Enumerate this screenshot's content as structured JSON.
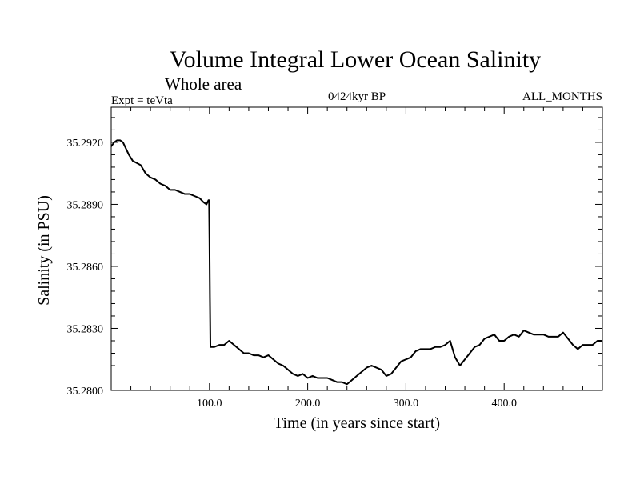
{
  "chart_data": {
    "type": "line",
    "title": "Volume Integral Lower Ocean Salinity",
    "subtitle": "Whole area",
    "header_left": "Expt = teVta",
    "header_center": "0424kyr BP",
    "header_right": "ALL_MONTHS",
    "xlabel": "Time (in years since start)",
    "ylabel": "Salinity (in PSU)",
    "xlim": [
      0,
      500
    ],
    "ylim": [
      35.28,
      35.2937
    ],
    "x_ticks": [
      {
        "value": 100,
        "label": "100.0"
      },
      {
        "value": 200,
        "label": "200.0"
      },
      {
        "value": 300,
        "label": "300.0"
      },
      {
        "value": 400,
        "label": "400.0"
      }
    ],
    "y_ticks": [
      {
        "value": 35.28,
        "label": "35.2800"
      },
      {
        "value": 35.283,
        "label": "35.2830"
      },
      {
        "value": 35.286,
        "label": "35.2860"
      },
      {
        "value": 35.289,
        "label": "35.2890"
      },
      {
        "value": 35.292,
        "label": "35.2920"
      }
    ],
    "grid": false,
    "series": [
      {
        "name": "",
        "color": "#000000",
        "x": [
          0,
          3,
          6,
          9,
          12,
          15,
          18,
          22,
          26,
          30,
          35,
          40,
          45,
          50,
          55,
          60,
          65,
          70,
          75,
          80,
          85,
          90,
          94,
          97,
          99,
          99.6,
          100,
          100.5,
          101,
          105,
          110,
          115,
          120,
          125,
          130,
          135,
          140,
          145,
          150,
          155,
          160,
          165,
          170,
          175,
          180,
          185,
          190,
          195,
          200,
          205,
          210,
          215,
          220,
          225,
          230,
          235,
          240,
          245,
          250,
          255,
          260,
          265,
          270,
          275,
          280,
          285,
          290,
          295,
          300,
          305,
          310,
          315,
          320,
          325,
          330,
          335,
          340,
          345,
          350,
          355,
          360,
          365,
          370,
          375,
          380,
          385,
          390,
          395,
          400,
          405,
          410,
          415,
          420,
          425,
          430,
          435,
          440,
          445,
          450,
          455,
          460,
          465,
          470,
          475,
          480,
          485,
          490,
          495,
          500
        ],
        "values": [
          35.2918,
          35.292,
          35.2921,
          35.2921,
          35.292,
          35.2917,
          35.2914,
          35.2911,
          35.291,
          35.2909,
          35.2905,
          35.2903,
          35.2902,
          35.29,
          35.2899,
          35.2897,
          35.2897,
          35.2896,
          35.2895,
          35.2895,
          35.2894,
          35.2893,
          35.2891,
          35.289,
          35.2892,
          35.2892,
          35.2874,
          35.2845,
          35.2821,
          35.2821,
          35.2822,
          35.2822,
          35.2824,
          35.2822,
          35.282,
          35.2818,
          35.2818,
          35.2817,
          35.2817,
          35.2816,
          35.2817,
          35.2815,
          35.2813,
          35.2812,
          35.281,
          35.2808,
          35.2807,
          35.2808,
          35.2806,
          35.2807,
          35.2806,
          35.2806,
          35.2806,
          35.2805,
          35.2804,
          35.2804,
          35.2803,
          35.2805,
          35.2807,
          35.2809,
          35.2811,
          35.2812,
          35.2811,
          35.281,
          35.2807,
          35.2808,
          35.2811,
          35.2814,
          35.2815,
          35.2816,
          35.2819,
          35.282,
          35.282,
          35.282,
          35.2821,
          35.2821,
          35.2822,
          35.2824,
          35.2816,
          35.2812,
          35.2815,
          35.2818,
          35.2821,
          35.2822,
          35.2825,
          35.2826,
          35.2827,
          35.2824,
          35.2824,
          35.2826,
          35.2827,
          35.2826,
          35.2829,
          35.2828,
          35.2827,
          35.2827,
          35.2827,
          35.2826,
          35.2826,
          35.2826,
          35.2828,
          35.2825,
          35.2822,
          35.282,
          35.2822,
          35.2822,
          35.2822,
          35.2824,
          35.2824
        ]
      }
    ]
  }
}
